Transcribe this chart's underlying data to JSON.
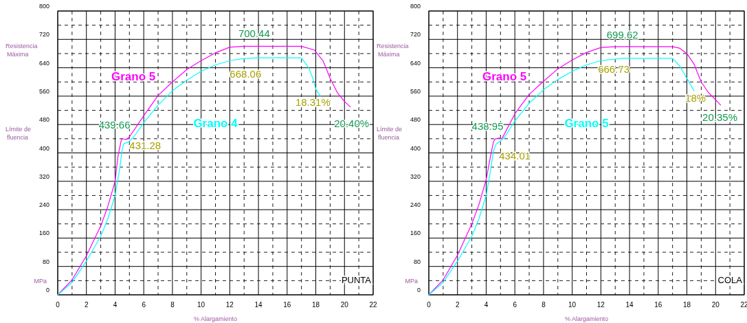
{
  "chart_data": [
    {
      "type": "line",
      "xlabel": "% Alargamiento",
      "ylabel": "MPa",
      "xlim": [
        0,
        22
      ],
      "ylim": [
        0,
        800
      ],
      "xticks": [
        0,
        {
          "value": 1,
          "label": null
        },
        2,
        {
          "value": 3,
          "label": null
        },
        4,
        {
          "value": 5,
          "label": null
        },
        6,
        {
          "value": 7,
          "label": null
        },
        8,
        {
          "value": 9,
          "label": null
        },
        10,
        {
          "value": 11,
          "label": null
        },
        12,
        {
          "value": 13,
          "label": null
        },
        14,
        {
          "value": 15,
          "label": null
        },
        16,
        {
          "value": 17,
          "label": null
        },
        18,
        {
          "value": 19,
          "label": null
        },
        20,
        {
          "value": 21,
          "label": null
        },
        22
      ],
      "yticks": [
        0,
        {
          "value": 40,
          "label": null
        },
        80,
        {
          "value": 120,
          "label": null
        },
        160,
        {
          "value": 200,
          "label": null
        },
        240,
        {
          "value": 280,
          "label": null
        },
        320,
        {
          "value": 360,
          "label": null
        },
        400,
        {
          "value": 440,
          "label": null
        },
        480,
        {
          "value": 520,
          "label": null
        },
        560,
        {
          "value": 600,
          "label": null
        },
        640,
        {
          "value": 680,
          "label": null
        },
        720,
        {
          "value": 760,
          "label": null
        },
        800
      ],
      "grid": true,
      "marker": "none",
      "line_style": "solid",
      "series": [
        {
          "name": "Grano 5",
          "color": "#ff00ff",
          "x": [
            0,
            1,
            2,
            3,
            3.5,
            4,
            4.2,
            4.4,
            4.46,
            4.8,
            5,
            6,
            7,
            8,
            9,
            10,
            11,
            12,
            13,
            17,
            17.9,
            18.5,
            19,
            19.5,
            20,
            20.4
          ],
          "values": [
            0,
            42,
            110,
            194,
            250,
            320,
            390,
            430,
            439.66,
            438,
            445,
            505,
            562,
            600,
            635,
            660,
            682,
            698,
            700.44,
            700.44,
            690,
            660,
            610,
            570,
            545,
            530
          ]
        },
        {
          "name": "Grano 4",
          "color": "#00ffff",
          "x": [
            0,
            1,
            2,
            3,
            3.5,
            4,
            4.3,
            4.5,
            4.6,
            4.96,
            5.3,
            6,
            7,
            8,
            9,
            10,
            11,
            12,
            13,
            14,
            17,
            17.5,
            17.8,
            18,
            18.31
          ],
          "values": [
            0,
            35,
            95,
            165,
            215,
            280,
            350,
            410,
            426,
            431.28,
            445,
            485,
            535,
            575,
            605,
            630,
            648,
            660,
            666,
            668.06,
            668.06,
            640,
            610,
            580,
            560
          ]
        }
      ],
      "annotations": [
        "Resistencia Máxima",
        "Límite de fluencia",
        "PUNTA",
        "700.44",
        "668.06",
        "18.31%",
        "20.40%",
        "439.66",
        "431.28"
      ]
    },
    {
      "type": "line",
      "xlabel": "% Alargamiento",
      "ylabel": "MPa",
      "xlim": [
        0,
        22
      ],
      "ylim": [
        0,
        800
      ],
      "xticks": [
        0,
        {
          "value": 1,
          "label": null
        },
        2,
        {
          "value": 3,
          "label": null
        },
        4,
        {
          "value": 5,
          "label": null
        },
        6,
        {
          "value": 7,
          "label": null
        },
        8,
        {
          "value": 9,
          "label": null
        },
        10,
        {
          "value": 11,
          "label": null
        },
        12,
        {
          "value": 13,
          "label": null
        },
        14,
        {
          "value": 15,
          "label": null
        },
        16,
        {
          "value": 17,
          "label": null
        },
        18,
        {
          "value": 19,
          "label": null
        },
        20,
        {
          "value": 21,
          "label": null
        },
        22
      ],
      "yticks": [
        0,
        {
          "value": 40,
          "label": null
        },
        80,
        {
          "value": 120,
          "label": null
        },
        160,
        {
          "value": 200,
          "label": null
        },
        240,
        {
          "value": 280,
          "label": null
        },
        320,
        {
          "value": 360,
          "label": null
        },
        400,
        {
          "value": 440,
          "label": null
        },
        480,
        {
          "value": 520,
          "label": null
        },
        560,
        {
          "value": 600,
          "label": null
        },
        640,
        {
          "value": 680,
          "label": null
        },
        720,
        {
          "value": 760,
          "label": null
        },
        800
      ],
      "grid": true,
      "marker": "none",
      "line_style": "solid",
      "series": [
        {
          "name": "Grano 5",
          "color": "#ff00ff",
          "x": [
            0,
            1,
            2,
            3,
            3.5,
            4,
            4.3,
            4.5,
            4.6,
            4.9,
            5.1,
            6,
            7,
            8,
            9,
            10,
            11,
            12,
            13,
            17,
            17.5,
            18,
            18.5,
            19,
            19.5,
            20,
            20.35
          ],
          "values": [
            0,
            42,
            112,
            200,
            255,
            325,
            390,
            430,
            438.95,
            442,
            440,
            510,
            565,
            602,
            637,
            662,
            683,
            697,
            699.62,
            699.62,
            695,
            680,
            650,
            600,
            570,
            550,
            535
          ]
        },
        {
          "name": "Grano 5",
          "color": "#00ffff",
          "x": [
            0,
            1,
            2,
            3,
            3.5,
            4,
            4.3,
            4.5,
            4.7,
            5,
            5.3,
            6,
            7,
            8,
            9,
            10,
            11,
            12,
            13.5,
            17,
            17.5,
            18,
            18.5
          ],
          "values": [
            0,
            35,
            95,
            165,
            215,
            280,
            350,
            405,
            425,
            434.01,
            445,
            490,
            540,
            578,
            607,
            630,
            648,
            660,
            666.73,
            666.73,
            645,
            610,
            575
          ]
        }
      ],
      "annotations": [
        "Resistencia Máxima",
        "Límite de fluencia",
        "COLA",
        "699.62",
        "666.73",
        "18%",
        "20.35%",
        "438.95",
        "434.01"
      ]
    }
  ]
}
